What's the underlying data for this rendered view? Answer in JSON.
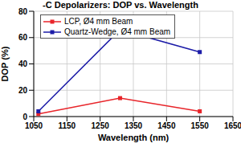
{
  "chart_data": {
    "type": "line",
    "title": "-C Depolarizers: DOP vs. Wavelength",
    "x_label": "Wavelength (nm)",
    "y_label": "DOP (%)",
    "x": [
      1064,
      1310,
      1550
    ],
    "series": [
      {
        "name": "LCP, Ø4 mm Beam",
        "color": "#e8252a",
        "values": [
          2,
          14,
          4
        ],
        "marker": "square",
        "line_style": "solid"
      },
      {
        "name": "Quartz-Wedge, Ø4 mm Beam",
        "color": "#1c1ca8",
        "values": [
          4,
          66,
          49
        ],
        "marker": "square",
        "line_style": "solid"
      }
    ],
    "xlim": [
      1050,
      1650
    ],
    "xticks": [
      1050,
      1150,
      1250,
      1350,
      1450,
      1550,
      1650
    ],
    "ylim": [
      0,
      80
    ],
    "yticks": [
      0,
      20,
      40,
      60,
      80
    ],
    "grid": true,
    "legend": "upper left"
  }
}
